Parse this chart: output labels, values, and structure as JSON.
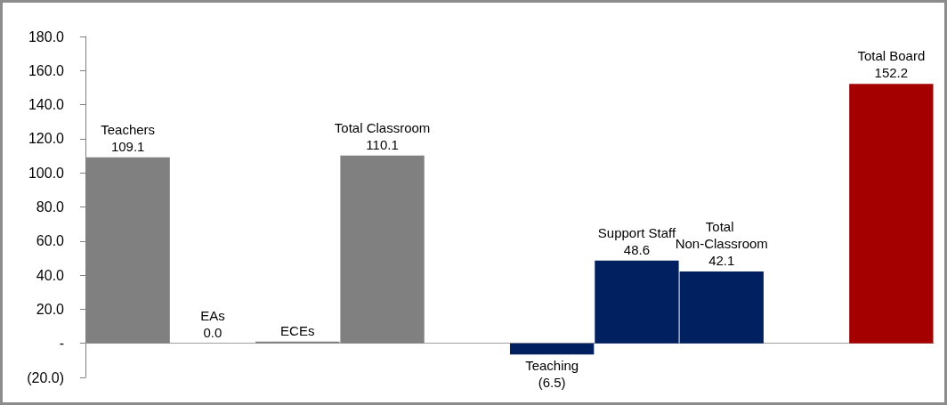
{
  "chart_data": {
    "type": "bar",
    "categories": [
      "Teachers",
      "EAs",
      "ECEs",
      "Total Classroom",
      null,
      "Teaching",
      "Support Staff",
      "Total Non-Classroom",
      null,
      "Total Board"
    ],
    "values": [
      109.1,
      0.0,
      1.0,
      110.1,
      null,
      -6.5,
      48.6,
      42.1,
      null,
      152.2
    ],
    "value_labels": [
      "109.1",
      "0.0",
      null,
      "110.1",
      null,
      "(6.5)",
      "48.6",
      "42.1",
      null,
      "152.2"
    ],
    "colors": [
      "#808080",
      "#808080",
      "#808080",
      "#808080",
      null,
      "#002060",
      "#002060",
      "#002060",
      null,
      "#a50000"
    ],
    "ylim": [
      -20,
      180
    ],
    "yticks": [
      {
        "value": -20,
        "label": "(20.0)"
      },
      {
        "value": 0,
        "label": "-"
      },
      {
        "value": 20,
        "label": "20.0"
      },
      {
        "value": 40,
        "label": "40.0"
      },
      {
        "value": 60,
        "label": "60.0"
      },
      {
        "value": 80,
        "label": "80.0"
      },
      {
        "value": 100,
        "label": "100.0"
      },
      {
        "value": 120,
        "label": "120.0"
      },
      {
        "value": 140,
        "label": "140.0"
      },
      {
        "value": 160,
        "label": "160.0"
      },
      {
        "value": 180,
        "label": "180.0"
      }
    ],
    "tick_labels": "y"
  }
}
